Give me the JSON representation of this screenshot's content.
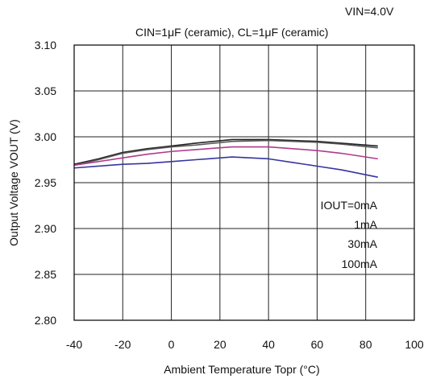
{
  "conditions": {
    "vin": "VIN=4.0V",
    "caps": "CIN=1μF (ceramic), CL=1μF (ceramic)"
  },
  "legend": [
    "IOUT=0mA",
    "1mA",
    "30mA",
    "100mA"
  ],
  "chart_data": {
    "type": "line",
    "title": "",
    "xlabel": "Ambient Temperature Topr (°C)",
    "ylabel": "Output Voltage VOUT (V)",
    "xlim": [
      -40,
      100
    ],
    "ylim": [
      2.8,
      3.1
    ],
    "xticks": [
      "-40",
      "-20",
      "0",
      "20",
      "40",
      "60",
      "80",
      "100"
    ],
    "yticks": [
      "2.80",
      "2.85",
      "2.90",
      "2.95",
      "3.00",
      "3.05",
      "3.10"
    ],
    "grid": true,
    "x": [
      -40,
      -30,
      -20,
      -10,
      0,
      10,
      25,
      40,
      50,
      60,
      70,
      85
    ],
    "series": [
      {
        "name": "IOUT=0mA",
        "color": "#222222",
        "values": [
          2.97,
          2.976,
          2.983,
          2.987,
          2.99,
          2.993,
          2.997,
          2.997,
          2.996,
          2.995,
          2.993,
          2.99
        ]
      },
      {
        "name": "1mA",
        "color": "#555555",
        "values": [
          2.969,
          2.975,
          2.982,
          2.986,
          2.989,
          2.991,
          2.995,
          2.996,
          2.995,
          2.994,
          2.992,
          2.988
        ]
      },
      {
        "name": "30mA",
        "color": "#b03a8c",
        "values": [
          2.969,
          2.973,
          2.977,
          2.981,
          2.984,
          2.986,
          2.989,
          2.989,
          2.987,
          2.985,
          2.982,
          2.976
        ]
      },
      {
        "name": "100mA",
        "color": "#3535a0",
        "values": [
          2.966,
          2.968,
          2.97,
          2.971,
          2.973,
          2.975,
          2.978,
          2.976,
          2.972,
          2.968,
          2.964,
          2.956
        ]
      }
    ]
  }
}
